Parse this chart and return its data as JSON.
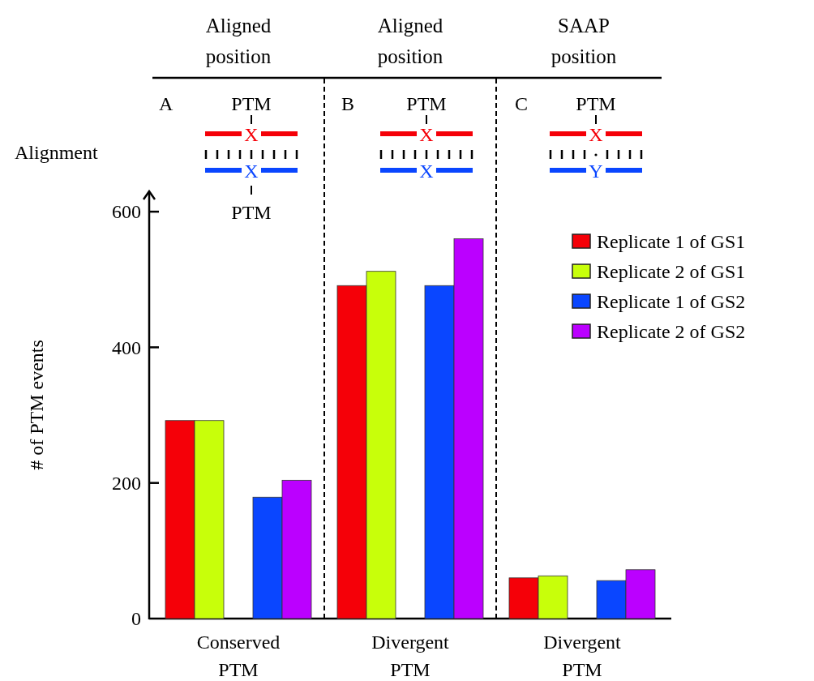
{
  "chart_data": {
    "type": "bar",
    "ylabel": "# of PTM events",
    "categories": [
      "Conserved PTM",
      "Divergent PTM",
      "Divergent PTM"
    ],
    "series": [
      {
        "name": "Replicate 1 of GS1",
        "color": "#f50008",
        "values": [
          292,
          491,
          60
        ]
      },
      {
        "name": "Replicate 2 of GS1",
        "color": "#c8ff0a",
        "values": [
          292,
          512,
          63
        ]
      },
      {
        "name": "Replicate 1 of GS2",
        "color": "#0a46ff",
        "values": [
          179,
          491,
          56
        ]
      },
      {
        "name": "Replicate 2 of GS2",
        "color": "#bb00ff",
        "values": [
          204,
          560,
          72
        ]
      }
    ],
    "ylim": [
      0,
      630
    ],
    "yticks": [
      0,
      200,
      400,
      600
    ],
    "grid": false,
    "legend": "top right",
    "annotations": [
      "Aligned position",
      "Aligned position",
      "SAAP position",
      "A",
      "B",
      "C",
      "Alignment",
      "PTM",
      "X",
      "X",
      "PTM",
      "PTM",
      "X",
      "X",
      "PTM",
      "X",
      "Y"
    ]
  }
}
